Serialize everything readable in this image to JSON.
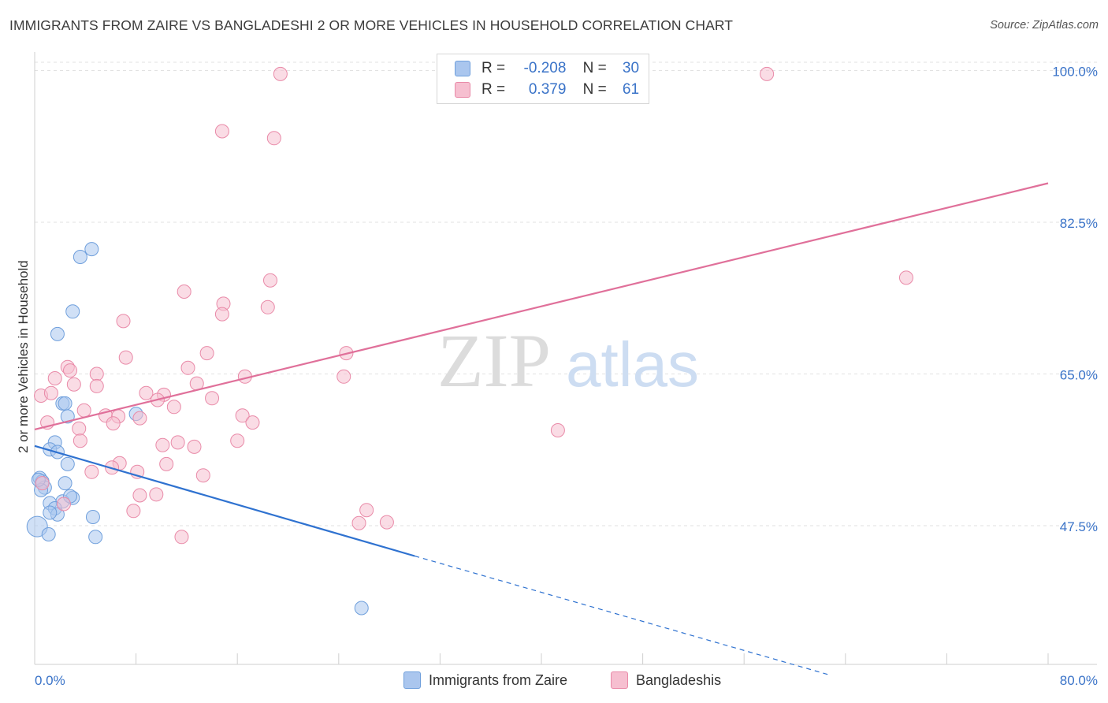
{
  "title": "IMMIGRANTS FROM ZAIRE VS BANGLADESHI 2 OR MORE VEHICLES IN HOUSEHOLD CORRELATION CHART",
  "source": "Source: ZipAtlas.com",
  "watermark": {
    "zip": "ZIP",
    "atlas": "atlas"
  },
  "legend": {
    "r_label": "R =",
    "n_label": "N =",
    "rows": [
      {
        "r": "-0.208",
        "n": "30"
      },
      {
        "r": "0.379",
        "n": "61"
      }
    ]
  },
  "colors": {
    "blue_fill": "#aac6ee",
    "blue_stroke": "#6f9fdc",
    "blue_line": "#2f72d0",
    "pink_fill": "#f6bfd0",
    "pink_stroke": "#e98aa8",
    "pink_line": "#e0709a",
    "tick_label": "#3a73c8"
  },
  "chart_data": {
    "type": "scatter",
    "title": "IMMIGRANTS FROM ZAIRE VS BANGLADESHI 2 OR MORE VEHICLES IN HOUSEHOLD CORRELATION CHART",
    "xlabel": "",
    "ylabel": "2 or more Vehicles in Household",
    "xlim": [
      0,
      80
    ],
    "ylim": [
      31.5,
      101.5
    ],
    "x_tick_labels": [
      "0.0%",
      "80.0%"
    ],
    "y_ticks": [
      47.5,
      65.0,
      82.5,
      100.0
    ],
    "y_tick_labels": [
      "47.5%",
      "65.0%",
      "82.5%",
      "100.0%"
    ],
    "series": [
      {
        "name": "Immigrants from Zaire",
        "color": "blue",
        "points": [
          [
            4.5,
            79.4
          ],
          [
            3.6,
            78.5
          ],
          [
            3.0,
            72.2
          ],
          [
            1.8,
            69.6
          ],
          [
            2.2,
            61.6
          ],
          [
            2.4,
            61.6
          ],
          [
            2.6,
            60.1
          ],
          [
            8.0,
            60.4
          ],
          [
            1.6,
            57.1
          ],
          [
            1.2,
            56.3
          ],
          [
            1.8,
            56.0
          ],
          [
            2.6,
            54.6
          ],
          [
            0.4,
            53.0
          ],
          [
            0.6,
            52.6
          ],
          [
            0.8,
            51.9
          ],
          [
            2.4,
            52.4
          ],
          [
            0.5,
            51.6
          ],
          [
            3.0,
            50.7
          ],
          [
            2.2,
            50.3
          ],
          [
            1.2,
            50.1
          ],
          [
            1.6,
            49.5
          ],
          [
            1.8,
            48.8
          ],
          [
            1.2,
            49.0
          ],
          [
            4.6,
            48.5
          ],
          [
            0.2,
            47.4
          ],
          [
            1.1,
            46.5
          ],
          [
            4.8,
            46.2
          ],
          [
            25.8,
            38.0
          ],
          [
            0.3,
            52.8
          ],
          [
            2.8,
            50.9
          ]
        ]
      },
      {
        "name": "Bangladeshis",
        "color": "pink",
        "points": [
          [
            19.4,
            99.6
          ],
          [
            57.8,
            99.6
          ],
          [
            14.8,
            93.0
          ],
          [
            18.9,
            92.2
          ],
          [
            68.8,
            76.1
          ],
          [
            18.6,
            75.8
          ],
          [
            11.8,
            74.5
          ],
          [
            14.9,
            73.1
          ],
          [
            18.4,
            72.7
          ],
          [
            14.8,
            71.9
          ],
          [
            7.0,
            71.1
          ],
          [
            7.2,
            66.9
          ],
          [
            13.6,
            67.4
          ],
          [
            24.6,
            67.4
          ],
          [
            2.6,
            65.8
          ],
          [
            12.1,
            65.7
          ],
          [
            2.8,
            65.4
          ],
          [
            4.9,
            65.0
          ],
          [
            1.6,
            64.5
          ],
          [
            16.6,
            64.7
          ],
          [
            24.4,
            64.7
          ],
          [
            3.1,
            63.8
          ],
          [
            4.9,
            63.6
          ],
          [
            12.8,
            63.9
          ],
          [
            0.5,
            62.5
          ],
          [
            1.3,
            62.8
          ],
          [
            8.8,
            62.8
          ],
          [
            10.2,
            62.6
          ],
          [
            9.7,
            62.0
          ],
          [
            14.0,
            62.2
          ],
          [
            3.9,
            60.8
          ],
          [
            11.0,
            61.2
          ],
          [
            16.4,
            60.2
          ],
          [
            5.6,
            60.2
          ],
          [
            6.6,
            60.1
          ],
          [
            8.3,
            59.9
          ],
          [
            1.0,
            59.4
          ],
          [
            6.2,
            59.3
          ],
          [
            17.2,
            59.4
          ],
          [
            3.5,
            58.7
          ],
          [
            41.3,
            58.5
          ],
          [
            3.6,
            57.3
          ],
          [
            16.0,
            57.3
          ],
          [
            10.1,
            56.8
          ],
          [
            11.3,
            57.1
          ],
          [
            12.6,
            56.6
          ],
          [
            6.7,
            54.7
          ],
          [
            10.4,
            54.6
          ],
          [
            4.5,
            53.7
          ],
          [
            6.1,
            54.2
          ],
          [
            8.1,
            53.7
          ],
          [
            13.3,
            53.3
          ],
          [
            8.3,
            51.0
          ],
          [
            9.6,
            51.1
          ],
          [
            0.6,
            52.4
          ],
          [
            2.3,
            50.0
          ],
          [
            26.2,
            49.3
          ],
          [
            7.8,
            49.2
          ],
          [
            25.6,
            47.8
          ],
          [
            27.8,
            47.9
          ],
          [
            11.6,
            46.2
          ]
        ]
      }
    ],
    "trend_lines": [
      {
        "series": "Immigrants from Zaire",
        "solid": [
          [
            0,
            56.7
          ],
          [
            30,
            44.0
          ]
        ],
        "dashed": [
          [
            30,
            44.0
          ],
          [
            62.7,
            30.3
          ]
        ]
      },
      {
        "series": "Bangladeshis",
        "solid": [
          [
            0,
            58.6
          ],
          [
            80,
            87.0
          ]
        ]
      }
    ],
    "legend_position": "top-center",
    "grid": true
  }
}
